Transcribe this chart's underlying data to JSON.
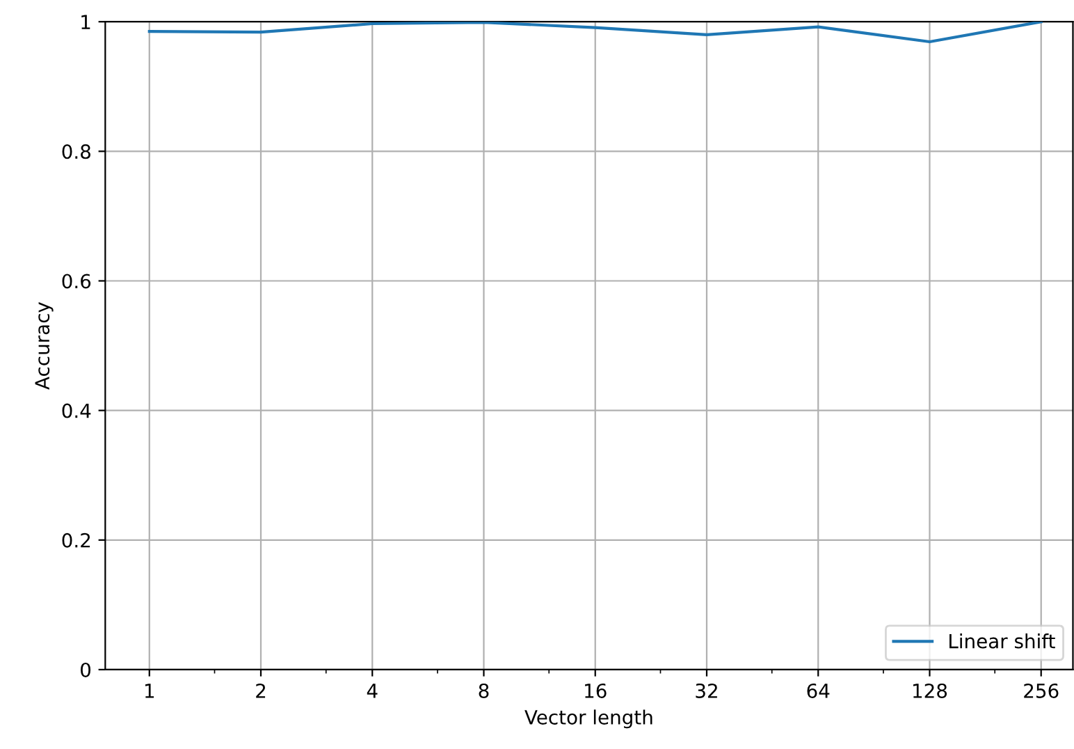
{
  "chart_data": {
    "type": "line",
    "xlabel": "Vector length",
    "ylabel": "Accuracy",
    "x": [
      1,
      2,
      4,
      8,
      16,
      32,
      64,
      128,
      256
    ],
    "series": [
      {
        "name": "Linear shift",
        "color": "#1f77b4",
        "values": [
          0.985,
          0.984,
          0.997,
          0.999,
          0.991,
          0.98,
          0.992,
          0.969,
          1.0
        ]
      }
    ],
    "log": "x",
    "xlim": [
      0.76,
      312
    ],
    "xticks": [
      1,
      2,
      4,
      8,
      16,
      32,
      64,
      128,
      256
    ],
    "ylim": [
      0,
      1
    ],
    "yticks": [
      0,
      0.2,
      0.4,
      0.6,
      0.8,
      1
    ],
    "grid": true,
    "legend": "lower right",
    "marker": "none",
    "line_style": "solid"
  }
}
